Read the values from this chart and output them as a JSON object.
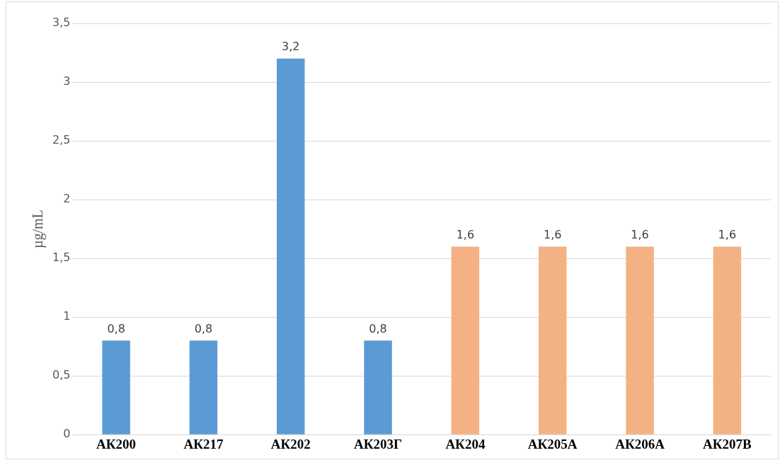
{
  "chart_data": {
    "type": "bar",
    "ylabel": "µg/mL",
    "categories": [
      "АК200",
      "АК217",
      "АК202",
      "АК203Г",
      "АК204",
      "АК205А",
      "АК206А",
      "АК207В"
    ],
    "values": [
      0.8,
      0.8,
      3.2,
      0.8,
      1.6,
      1.6,
      1.6,
      1.6
    ],
    "colors": [
      "#5b9bd5",
      "#5b9bd5",
      "#5b9bd5",
      "#5b9bd5",
      "#f4b183",
      "#f4b183",
      "#f4b183",
      "#f4b183"
    ],
    "value_labels": [
      "0,8",
      "0,8",
      "3,2",
      "0,8",
      "1,6",
      "1,6",
      "1,6",
      "1,6"
    ],
    "ylim": [
      0,
      3.5
    ],
    "yticks": [
      0,
      {
        "value": 0.5,
        "label": "0,5"
      },
      1,
      {
        "value": 1.5,
        "label": "1,5"
      },
      2,
      {
        "value": 2.5,
        "label": "2,5"
      },
      3,
      {
        "value": 3.5,
        "label": "3,5"
      }
    ],
    "grid": "y",
    "legend": false
  }
}
